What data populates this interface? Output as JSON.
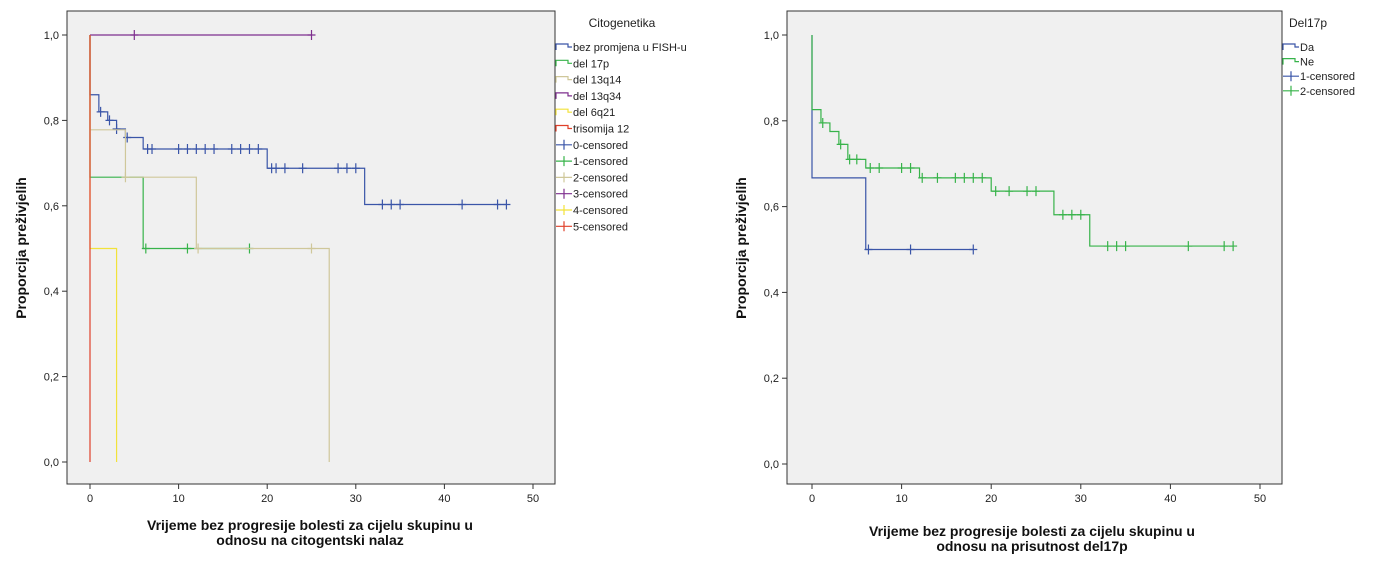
{
  "chart_data": [
    {
      "type": "line",
      "ylabel": "Proporcija preživjelih",
      "xlabel_lines": [
        "Vrijeme bez progresije bolesti za cijelu skupinu u",
        "odnosu na citogentski nalaz"
      ],
      "xlim": [
        0,
        50
      ],
      "ylim": [
        0,
        1
      ],
      "x_ticks": [
        0,
        10,
        20,
        30,
        40,
        50
      ],
      "y_ticks": [
        "0,0",
        "0,2",
        "0,4",
        "0,6",
        "0,8",
        "1,0"
      ],
      "legend_title": "Citogenetika",
      "legend_entries": [
        {
          "label": "bez promjena u FISH-u",
          "kind": "line",
          "color": "#3a55a8"
        },
        {
          "label": "del 17p",
          "kind": "line",
          "color": "#37b34a"
        },
        {
          "label": "del 13q14",
          "kind": "line",
          "color": "#cfc79a"
        },
        {
          "label": "del 13q34",
          "kind": "line",
          "color": "#7e2f8e"
        },
        {
          "label": "del 6q21",
          "kind": "line",
          "color": "#f2e23a"
        },
        {
          "label": "trisomija 12",
          "kind": "line",
          "color": "#e0402a"
        },
        {
          "label": "0-censored",
          "kind": "censor",
          "color": "#3a55a8"
        },
        {
          "label": "1-censored",
          "kind": "censor",
          "color": "#37b34a"
        },
        {
          "label": "2-censored",
          "kind": "censor",
          "color": "#cfc79a"
        },
        {
          "label": "3-censored",
          "kind": "censor",
          "color": "#7e2f8e"
        },
        {
          "label": "4-censored",
          "kind": "censor",
          "color": "#f2e23a"
        },
        {
          "label": "5-censored",
          "kind": "censor",
          "color": "#e0402a"
        }
      ],
      "series": [
        {
          "name": "bez promjena u FISH-u",
          "color": "#3a55a8",
          "steps": [
            [
              0,
              1.0
            ],
            [
              0,
              0.86
            ],
            [
              1,
              0.82
            ],
            [
              2,
              0.8
            ],
            [
              3,
              0.78
            ],
            [
              4,
              0.76
            ],
            [
              6,
              0.733
            ],
            [
              20,
              0.688
            ],
            [
              31,
              0.603
            ],
            [
              47,
              0.603
            ]
          ],
          "censored": [
            [
              1.2,
              0.82
            ],
            [
              2.2,
              0.8
            ],
            [
              3.0,
              0.78
            ],
            [
              4.2,
              0.76
            ],
            [
              6.5,
              0.733
            ],
            [
              7.0,
              0.733
            ],
            [
              10,
              0.733
            ],
            [
              11,
              0.733
            ],
            [
              12,
              0.733
            ],
            [
              13,
              0.733
            ],
            [
              14,
              0.733
            ],
            [
              16,
              0.733
            ],
            [
              17,
              0.733
            ],
            [
              18,
              0.733
            ],
            [
              19,
              0.733
            ],
            [
              20.5,
              0.688
            ],
            [
              21,
              0.688
            ],
            [
              22,
              0.688
            ],
            [
              24,
              0.688
            ],
            [
              28,
              0.688
            ],
            [
              29,
              0.688
            ],
            [
              30,
              0.688
            ],
            [
              33,
              0.603
            ],
            [
              34,
              0.603
            ],
            [
              35,
              0.603
            ],
            [
              42,
              0.603
            ],
            [
              46,
              0.603
            ],
            [
              47,
              0.603
            ]
          ]
        },
        {
          "name": "del 17p",
          "color": "#37b34a",
          "steps": [
            [
              0,
              1.0
            ],
            [
              0,
              0.667
            ],
            [
              6,
              0.5
            ],
            [
              18,
              0.5
            ]
          ],
          "censored": [
            [
              6.3,
              0.5
            ],
            [
              11,
              0.5
            ],
            [
              18,
              0.5
            ]
          ]
        },
        {
          "name": "del 13q14",
          "color": "#cfc79a",
          "steps": [
            [
              0,
              1.0
            ],
            [
              0,
              0.778
            ],
            [
              4,
              0.667
            ],
            [
              12,
              0.5
            ],
            [
              27,
              0.0
            ]
          ],
          "censored": [
            [
              4,
              0.667
            ],
            [
              12.2,
              0.5
            ],
            [
              25,
              0.5
            ]
          ]
        },
        {
          "name": "del 13q34",
          "color": "#7e2f8e",
          "steps": [
            [
              0,
              1.0
            ],
            [
              25,
              1.0
            ]
          ],
          "censored": [
            [
              5,
              1.0
            ],
            [
              25,
              1.0
            ]
          ]
        },
        {
          "name": "del 6q21",
          "color": "#f2e23a",
          "steps": [
            [
              0,
              1.0
            ],
            [
              0,
              0.5
            ],
            [
              3,
              0.0
            ]
          ],
          "censored": []
        },
        {
          "name": "trisomija 12",
          "color": "#e0402a",
          "steps": [
            [
              0,
              1.0
            ],
            [
              0,
              0.0
            ]
          ],
          "censored": []
        }
      ]
    },
    {
      "type": "line",
      "ylabel": "Proporcija preživjelih",
      "xlabel_lines": [
        "Vrijeme bez progresije bolesti za cijelu skupinu u",
        "odnosu na prisutnost del17p"
      ],
      "xlim": [
        0,
        50
      ],
      "ylim": [
        0,
        1
      ],
      "x_ticks": [
        0,
        10,
        20,
        30,
        40,
        50
      ],
      "y_ticks": [
        "0,0",
        "0,2",
        "0,4",
        "0,6",
        "0,8",
        "1,0"
      ],
      "legend_title": "Del17p",
      "legend_entries": [
        {
          "label": "Da",
          "kind": "line",
          "color": "#3a55a8"
        },
        {
          "label": "Ne",
          "kind": "line",
          "color": "#37b34a"
        },
        {
          "label": "1-censored",
          "kind": "censor",
          "color": "#3a55a8"
        },
        {
          "label": "2-censored",
          "kind": "censor",
          "color": "#37b34a"
        }
      ],
      "series": [
        {
          "name": "Da",
          "color": "#3a55a8",
          "steps": [
            [
              0,
              1.0
            ],
            [
              0,
              0.667
            ],
            [
              6,
              0.5
            ],
            [
              18,
              0.5
            ]
          ],
          "censored": [
            [
              6.3,
              0.5
            ],
            [
              11,
              0.5
            ],
            [
              18,
              0.5
            ]
          ]
        },
        {
          "name": "Ne",
          "color": "#37b34a",
          "steps": [
            [
              0,
              1.0
            ],
            [
              0,
              0.826
            ],
            [
              1,
              0.795
            ],
            [
              2,
              0.775
            ],
            [
              3,
              0.745
            ],
            [
              4,
              0.71
            ],
            [
              6,
              0.69
            ],
            [
              12,
              0.667
            ],
            [
              20,
              0.636
            ],
            [
              27,
              0.581
            ],
            [
              31,
              0.508
            ],
            [
              47,
              0.508
            ]
          ],
          "censored": [
            [
              1.2,
              0.795
            ],
            [
              3.2,
              0.745
            ],
            [
              4.2,
              0.71
            ],
            [
              5,
              0.71
            ],
            [
              6.5,
              0.69
            ],
            [
              7.5,
              0.69
            ],
            [
              10,
              0.69
            ],
            [
              11,
              0.69
            ],
            [
              12.3,
              0.667
            ],
            [
              14,
              0.667
            ],
            [
              16,
              0.667
            ],
            [
              17,
              0.667
            ],
            [
              18,
              0.667
            ],
            [
              19,
              0.667
            ],
            [
              20.5,
              0.636
            ],
            [
              22,
              0.636
            ],
            [
              24,
              0.636
            ],
            [
              25,
              0.636
            ],
            [
              28,
              0.581
            ],
            [
              29,
              0.581
            ],
            [
              30,
              0.581
            ],
            [
              33,
              0.508
            ],
            [
              34,
              0.508
            ],
            [
              35,
              0.508
            ],
            [
              42,
              0.508
            ],
            [
              46,
              0.508
            ],
            [
              47,
              0.508
            ]
          ]
        }
      ]
    }
  ]
}
